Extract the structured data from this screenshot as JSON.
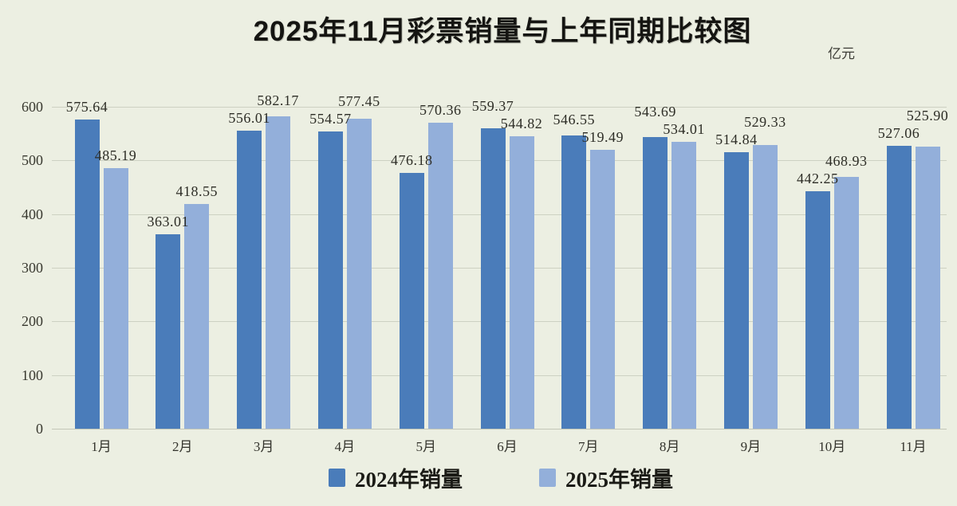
{
  "title": "2025年11月彩票销量与上年同期比较图",
  "unit_label": "亿元",
  "colors": {
    "background": "#ECEFE2",
    "series_2024": "#4A7CBA",
    "series_2025": "#93AFDA",
    "grid": "#CDD1C2",
    "text": "#2d2d26"
  },
  "chart_data": {
    "type": "bar",
    "title": "2025年11月彩票销量与上年同期比较图",
    "unit": "亿元",
    "categories": [
      "1月",
      "2月",
      "3月",
      "4月",
      "5月",
      "6月",
      "7月",
      "8月",
      "9月",
      "10月",
      "11月"
    ],
    "series": [
      {
        "name": "2024年销量",
        "color": "#4A7CBA",
        "values": [
          575.64,
          363.01,
          556.01,
          554.57,
          476.18,
          559.37,
          546.55,
          543.69,
          514.84,
          442.25,
          527.06
        ]
      },
      {
        "name": "2025年销量",
        "color": "#93AFDA",
        "values": [
          485.19,
          418.55,
          582.17,
          577.45,
          570.36,
          544.82,
          519.49,
          534.01,
          529.33,
          468.93,
          525.9
        ]
      }
    ],
    "ylabel": "",
    "xlabel": "",
    "ylim": [
      0,
      600
    ],
    "yticks": [
      0,
      100,
      200,
      300,
      400,
      500,
      600
    ],
    "grid": true,
    "legend_position": "bottom",
    "data_labels": true,
    "data_label_decimals": 2
  }
}
